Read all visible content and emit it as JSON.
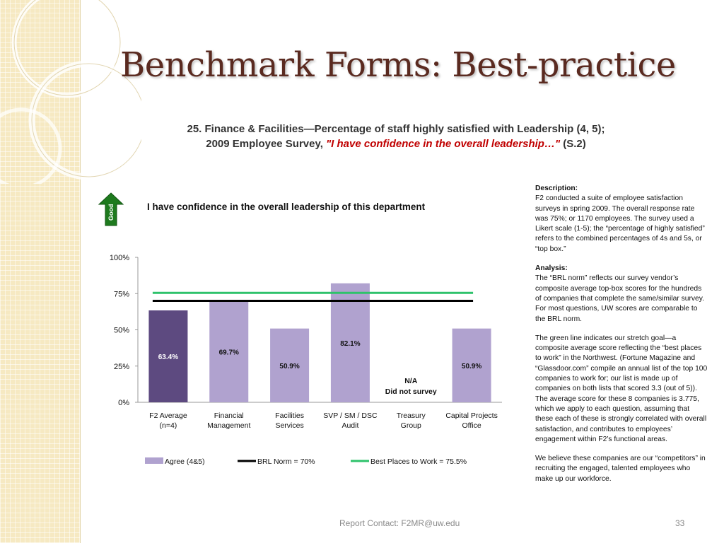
{
  "slide": {
    "title": "Benchmark Forms: Best-practice",
    "heading_line1": "25. Finance & Facilities—Percentage of staff highly satisfied with Leadership (4, 5);",
    "heading_line2_prefix": "2009 Employee Survey, ",
    "heading_line2_quote": "\"I have confidence in the overall leadership…\"",
    "heading_line2_suffix": " (S.2)",
    "good_label": "Good",
    "footer_contact": "Report Contact:  F2MR@uw.edu",
    "page_number": "33"
  },
  "chart_data": {
    "type": "bar",
    "title": "I have confidence in the overall leadership of this department",
    "categories": [
      [
        "F2 Average",
        "(n=4)"
      ],
      [
        "Financial",
        "Management"
      ],
      [
        "Facilities",
        "Services"
      ],
      [
        "SVP / SM / DSC",
        "Audit"
      ],
      [
        "Treasury",
        "Group"
      ],
      [
        "Capital Projects",
        "Office"
      ]
    ],
    "series": [
      {
        "name": "Agree (4&5)",
        "values": [
          63.4,
          69.7,
          50.9,
          82.1,
          null,
          50.9
        ]
      }
    ],
    "value_labels": [
      "63.4%",
      "69.7%",
      "50.9%",
      "82.1%",
      "N/A",
      "50.9%"
    ],
    "na_note": "Did not survey",
    "highlight_index": 0,
    "reference_lines": [
      {
        "name": "BRL Norm = 70%",
        "value": 70,
        "color": "#000000"
      },
      {
        "name": "Best Places to Work = 75.5%",
        "value": 75.5,
        "color": "#2ec26b"
      }
    ],
    "y_ticks": [
      "0%",
      "25%",
      "50%",
      "75%",
      "100%"
    ],
    "ylim": [
      0,
      100
    ],
    "legend_position": "bottom",
    "colors": {
      "bar": "#b0a2cf",
      "highlight": "#5d4a80"
    }
  },
  "side_panel": {
    "description_title": "Description:",
    "description_text": "F2 conducted a suite of employee satisfaction surveys in spring 2009. The overall response rate was 75%; or 1170 employees. The survey used a Likert scale (1-5); the “percentage of highly satisfied” refers to the combined percentages of 4s and 5s, or “top box.”",
    "analysis_title": "Analysis:",
    "analysis_text": "The “BRL norm” reflects our survey vendor’s composite average top-box scores for the hundreds of companies that complete the same/similar survey.  For most questions, UW scores are comparable to the BRL norm.",
    "green_line_text": "The green line indicates our stretch goal—a composite average score reflecting the “best places to work” in the Northwest. (Fortune Magazine and “Glassdoor.com” compile an annual list of the top 100 companies to work for; our list is made up of companies on both lists that scored 3.3 (out of 5)). The average score for these 8 companies is 3.775, which we apply to each question, assuming that these each of these is strongly correlated with overall satisfaction, and contributes to employees’ engagement within F2’s functional areas.",
    "competitors_text": "We believe these companies are our “competitors” in recruiting the engaged, talented employees who make up our workforce."
  }
}
